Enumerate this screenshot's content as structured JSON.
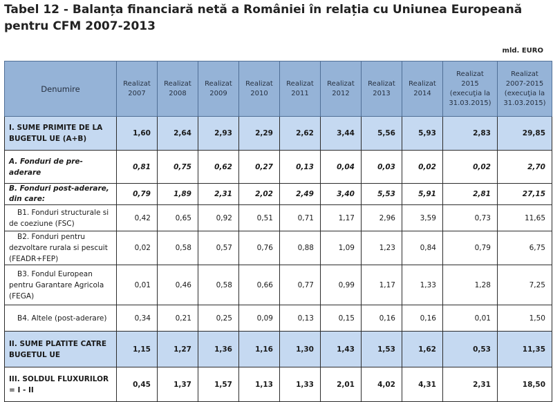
{
  "title": "Tabel 12 - Balanța financiară netă a României în relația cu Uniunea Europeană pentru CFM 2007-2013",
  "unit": "mld. EURO",
  "table": {
    "headers": [
      "Denumire",
      "Realizat 2007",
      "Realizat 2008",
      "Realizat 2009",
      "Realizat 2010",
      "Realizat 2011",
      "Realizat 2012",
      "Realizat 2013",
      "Realizat 2014",
      "Realizat 2015 (execuţia la 31.03.2015)",
      "Realizat 2007-2015 (execuţia la 31.03.2015)"
    ],
    "rows": [
      {
        "label": "I. SUME PRIMITE DE LA BUGETUL UE (A+B)",
        "values": [
          "1,60",
          "2,64",
          "2,93",
          "2,29",
          "2,62",
          "3,44",
          "5,56",
          "5,93",
          "2,83",
          "29,85"
        ]
      },
      {
        "label": "A. Fonduri de pre-aderare",
        "values": [
          "0,81",
          "0,75",
          "0,62",
          "0,27",
          "0,13",
          "0,04",
          "0,03",
          "0,02",
          "0,02",
          "2,70"
        ]
      },
      {
        "label": "B. Fonduri post-aderare, din care:",
        "values": [
          "0,79",
          "1,89",
          "2,31",
          "2,02",
          "2,49",
          "3,40",
          "5,53",
          "5,91",
          "2,81",
          "27,15"
        ]
      },
      {
        "label": "B1. Fonduri structurale si de coeziune (FSC)",
        "values": [
          "0,42",
          "0,65",
          "0,92",
          "0,51",
          "0,71",
          "1,17",
          "2,96",
          "3,59",
          "0,73",
          "11,65"
        ]
      },
      {
        "label": "B2. Fonduri pentru dezvoltare rurala si pescuit (FEADR+FEP)",
        "values": [
          "0,02",
          "0,58",
          "0,57",
          "0,76",
          "0,88",
          "1,09",
          "1,23",
          "0,84",
          "0,79",
          "6,75"
        ]
      },
      {
        "label": "B3. Fondul European pentru Garantare Agricola (FEGA)",
        "values": [
          "0,01",
          "0,46",
          "0,58",
          "0,66",
          "0,77",
          "0,99",
          "1,17",
          "1,33",
          "1,28",
          "7,25"
        ]
      },
      {
        "label": "B4. Altele (post-aderare)",
        "values": [
          "0,34",
          "0,21",
          "0,25",
          "0,09",
          "0,13",
          "0,15",
          "0,16",
          "0,16",
          "0,01",
          "1,50"
        ]
      },
      {
        "label": "II. SUME PLATITE CATRE BUGETUL UE",
        "values": [
          "1,15",
          "1,27",
          "1,36",
          "1,16",
          "1,30",
          "1,43",
          "1,53",
          "1,62",
          "0,53",
          "11,35"
        ]
      },
      {
        "label": "III. SOLDUL FLUXURILOR = I - II",
        "values": [
          "0,45",
          "1,37",
          "1,57",
          "1,13",
          "1,33",
          "2,01",
          "4,02",
          "4,31",
          "2,31",
          "18,50"
        ]
      }
    ]
  },
  "colors": {
    "header_bg": "#95b3d7",
    "total_row_bg": "#c5d9f1",
    "border": "#2b2b2b"
  }
}
